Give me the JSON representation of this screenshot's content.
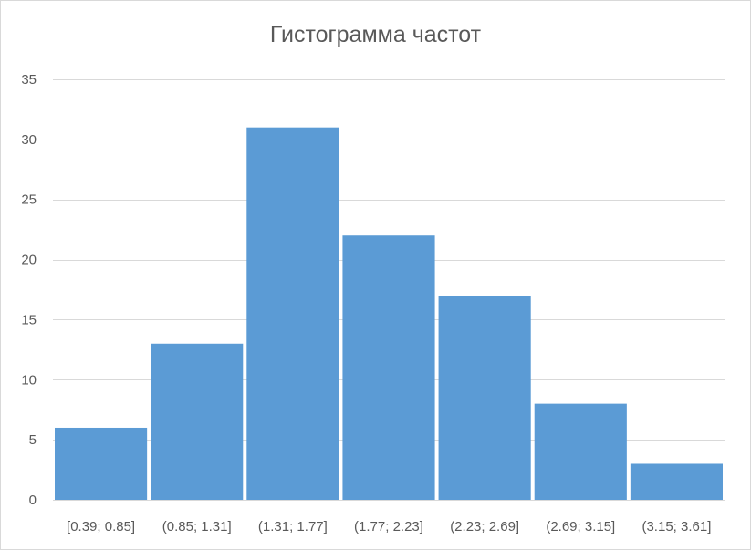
{
  "chart_data": {
    "type": "bar",
    "title": "Гистограмма частот",
    "xlabel": "",
    "ylabel": "",
    "categories": [
      "[0.39; 0.85]",
      "(0.85; 1.31]",
      "(1.31; 1.77]",
      "(1.77; 2.23]",
      "(2.23; 2.69]",
      "(2.69; 3.15]",
      "(3.15; 3.61]"
    ],
    "values": [
      6,
      13,
      31,
      22,
      17,
      8,
      3
    ],
    "ylim": [
      0,
      35
    ],
    "yticks": [
      0,
      5,
      10,
      15,
      20,
      25,
      30,
      35
    ],
    "grid": true,
    "legend": "none",
    "bar_color": "#5b9bd5",
    "grid_color": "#d9d9d9"
  }
}
